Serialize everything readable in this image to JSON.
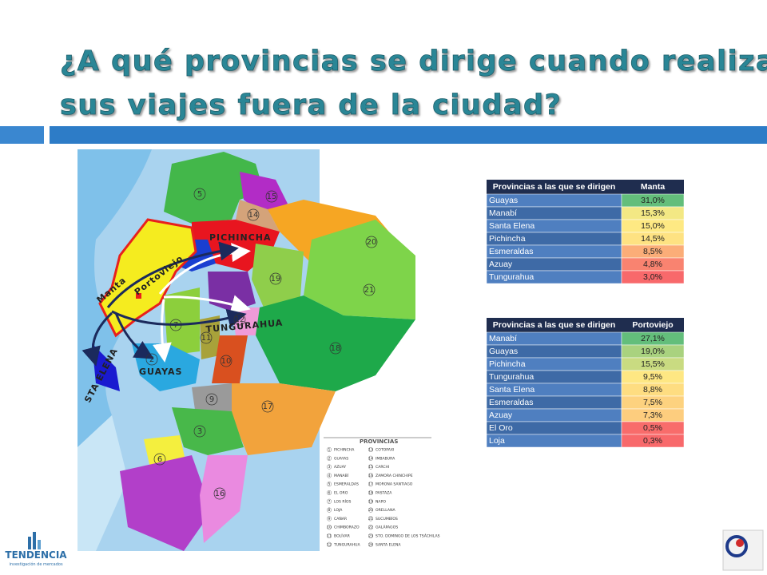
{
  "title": "¿A qué provincias se dirige cuando realiza sus viajes fuera de la ciudad?",
  "map": {
    "labels": [
      {
        "text": "PICHINCHA"
      },
      {
        "text": "Portoviejo"
      },
      {
        "text": "Manta"
      },
      {
        "text": "TUNGURAHUA"
      },
      {
        "text": "GUAYAS"
      },
      {
        "text": "STA ELENA"
      }
    ],
    "numbers": [
      "5",
      "15",
      "14",
      "20",
      "19",
      "21",
      "12",
      "7",
      "11",
      "2",
      "10",
      "18",
      "9",
      "17",
      "3",
      "6",
      "16"
    ]
  },
  "legend": {
    "title": "PROVINCIAS",
    "items": [
      {
        "number": "1",
        "name": "PICHINCHA"
      },
      {
        "number": "2",
        "name": "GUAYAS"
      },
      {
        "number": "3",
        "name": "AZUAY"
      },
      {
        "number": "4",
        "name": "MANABÍ"
      },
      {
        "number": "5",
        "name": "ESMERALDAS"
      },
      {
        "number": "6",
        "name": "EL ORO"
      },
      {
        "number": "7",
        "name": "LOS RÍOS"
      },
      {
        "number": "8",
        "name": "LOJA"
      },
      {
        "number": "9",
        "name": "CAÑAR"
      },
      {
        "number": "10",
        "name": "CHIMBORAZO"
      },
      {
        "number": "11",
        "name": "BOLÍVAR"
      },
      {
        "number": "12",
        "name": "TUNGURAHUA"
      },
      {
        "number": "13",
        "name": "COTOPAXI"
      },
      {
        "number": "14",
        "name": "IMBABURA"
      },
      {
        "number": "15",
        "name": "CARCHI"
      },
      {
        "number": "16",
        "name": "ZAMORA CHINCHIPE"
      },
      {
        "number": "17",
        "name": "MORONA SANTIAGO"
      },
      {
        "number": "18",
        "name": "PASTAZA"
      },
      {
        "number": "19",
        "name": "NAPO"
      },
      {
        "number": "20",
        "name": "ORELLANA"
      },
      {
        "number": "21",
        "name": "SUCUMBÍOS"
      },
      {
        "number": "22",
        "name": "GALÁPAGOS"
      },
      {
        "number": "23",
        "name": "STO. DOMINGO DE LOS TSÁCHILAS"
      },
      {
        "number": "24",
        "name": "SANTA ELENA"
      }
    ]
  },
  "tables": [
    {
      "header": [
        "Provincias a las que se dirigen",
        "Manta"
      ],
      "rows": [
        {
          "province": "Guayas",
          "value": "31,0%",
          "color": "#63be7b"
        },
        {
          "province": "Manabí",
          "value": "15,3%",
          "color": "#f3e884"
        },
        {
          "province": "Santa Elena",
          "value": "15,0%",
          "color": "#fee983"
        },
        {
          "province": "Pichincha",
          "value": "14,5%",
          "color": "#fee282"
        },
        {
          "province": "Esmeraldas",
          "value": "8,5%",
          "color": "#fbad78"
        },
        {
          "province": "Azuay",
          "value": "4,8%",
          "color": "#f98370"
        },
        {
          "province": "Tungurahua",
          "value": "3,0%",
          "color": "#f8696b"
        }
      ]
    },
    {
      "header": [
        "Provincias a las que se dirigen",
        "Portoviejo"
      ],
      "rows": [
        {
          "province": "Manabí",
          "value": "27,1%",
          "color": "#63be7b"
        },
        {
          "province": "Guayas",
          "value": "19,0%",
          "color": "#a9d27f"
        },
        {
          "province": "Pichincha",
          "value": "15,5%",
          "color": "#c9db81"
        },
        {
          "province": "Tungurahua",
          "value": "9,5%",
          "color": "#fee783"
        },
        {
          "province": "Santa Elena",
          "value": "8,8%",
          "color": "#fedd81"
        },
        {
          "province": "Esmeraldas",
          "value": "7,5%",
          "color": "#fdd27f"
        },
        {
          "province": "Azuay",
          "value": "7,3%",
          "color": "#fdcd7e"
        },
        {
          "province": "El Oro",
          "value": "0,5%",
          "color": "#f86c6b"
        },
        {
          "province": "Loja",
          "value": "0,3%",
          "color": "#f8696b"
        }
      ]
    }
  ],
  "logo": {
    "name": "TENDENCIA",
    "tagline": "investigación de mercados"
  }
}
